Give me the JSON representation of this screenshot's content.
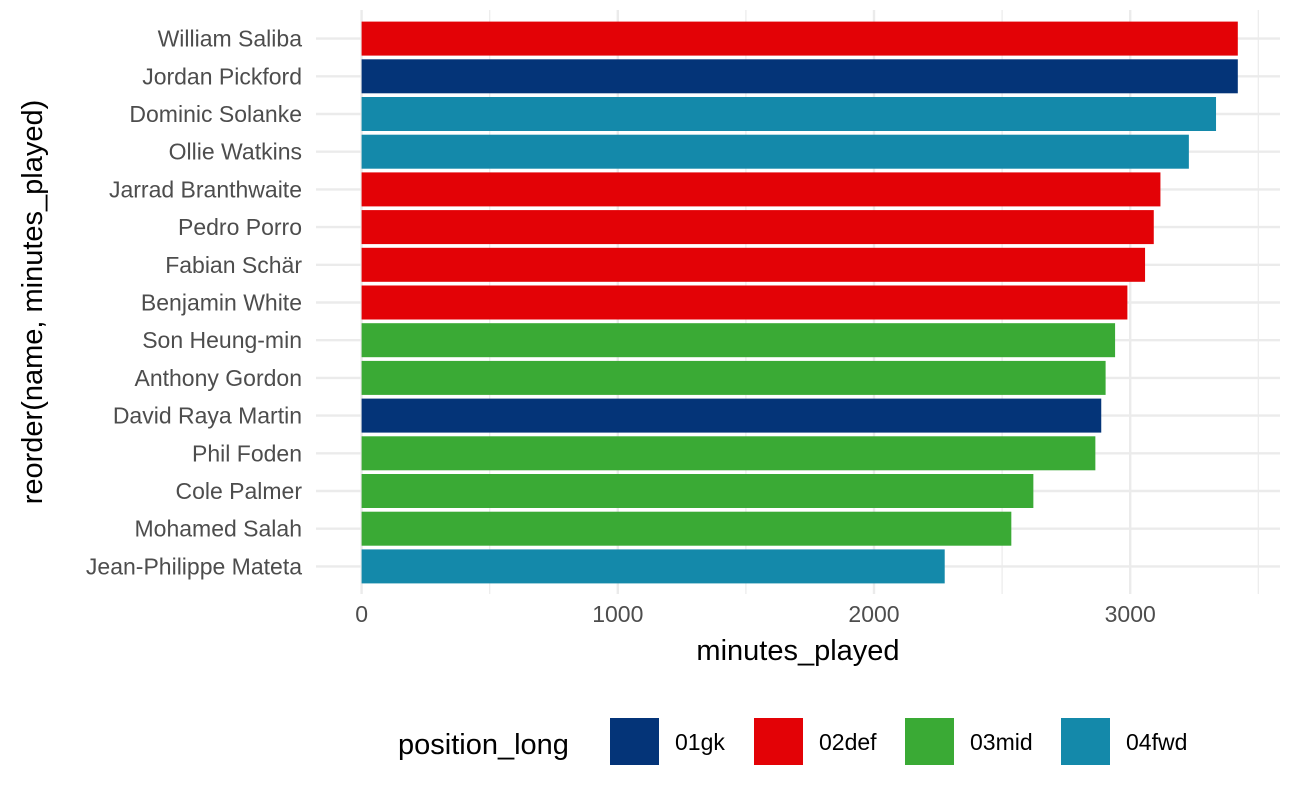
{
  "chart_data": {
    "type": "bar",
    "orientation": "horizontal",
    "title": "",
    "xlabel": "minutes_played",
    "ylabel": "reorder(name, minutes_played)",
    "xlim": [
      0,
      3600
    ],
    "x_ticks": [
      0,
      1000,
      2000,
      3000
    ],
    "grid": true,
    "legend": {
      "title": "position_long",
      "placement": "bottom",
      "entries": [
        {
          "key": "01gk",
          "color": "#043478"
        },
        {
          "key": "02def",
          "color": "#e30206"
        },
        {
          "key": "03mid",
          "color": "#3aaa35"
        },
        {
          "key": "04fwd",
          "color": "#1489aa"
        }
      ]
    },
    "categories": [
      "William Saliba",
      "Jordan Pickford",
      "Dominic Solanke",
      "Ollie Watkins",
      "Jarrad Branthwaite",
      "Pedro Porro",
      "Fabian Schär",
      "Benjamin White",
      "Son Heung-min",
      "Anthony Gordon",
      "David Raya Martin",
      "Phil Foden",
      "Cole Palmer",
      "Mohamed Salah",
      "Jean-Philippe Mateta"
    ],
    "values": [
      3420,
      3420,
      3335,
      3229,
      3118,
      3092,
      3058,
      2989,
      2941,
      2904,
      2887,
      2864,
      2622,
      2536,
      2276
    ],
    "groups": [
      "02def",
      "01gk",
      "04fwd",
      "04fwd",
      "02def",
      "02def",
      "02def",
      "02def",
      "03mid",
      "03mid",
      "01gk",
      "03mid",
      "03mid",
      "03mid",
      "04fwd"
    ]
  }
}
